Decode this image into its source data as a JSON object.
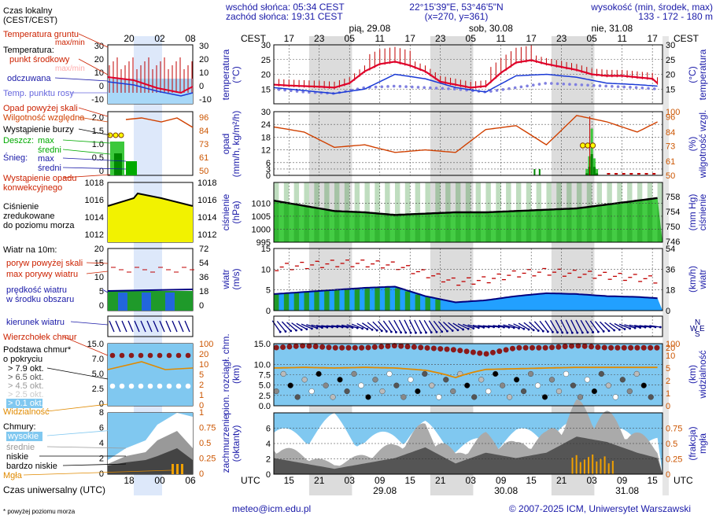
{
  "header": {
    "sunrise": "wschód słońca: 05:34 CEST",
    "sunset": "zachód słońca: 19:31 CEST",
    "coords": "22°15'39\"E, 53°46'5\"N",
    "grid": "(x=270,  y=361)",
    "height_title": "wysokość (min, środek, max)",
    "height_values": "133 - 172 - 180 m"
  },
  "colors": {
    "blue_text": "#1a1aa8",
    "red_text": "#cc2200",
    "orange_text": "#cc6a00",
    "green_text": "#00aa00",
    "dark_blue": "#000080"
  },
  "legend": {
    "local_time": "Czas lokalny\n(CEST/CEST)",
    "soil_temp": "Temperatura gruntu",
    "max_min": "max/min",
    "temperature": "Temperatura:",
    "mid_point": "punkt środkowy",
    "max_min2": "max/min",
    "felt": "odczuwana",
    "dew": "Temp. punktu rosy",
    "precip_above": "Opad powyżej skali",
    "humidity": "Wilgotność względna",
    "storm": "Wystąpienie burzy",
    "rain": "Deszcz:",
    "rain_max": "max",
    "rain_mean": "średni",
    "snow": "Śnieg:",
    "snow_max": "max",
    "snow_mean": "średni",
    "conv": "Wystąpienie opadu\nkonwekcyjnego",
    "pressure": "Ciśnienie\nzredukowane\ndo poziomu morza",
    "wind10": "Wiatr na 10m:",
    "gust_above": "poryw powyżej skali",
    "gust_max": "max porywy wiatru",
    "wind_mean": "prędkość wiatru\nw środku obszaru",
    "wind_dir": "kierunek wiatru",
    "cloud_top": "Wierzchołek chmur",
    "cloud_base": "Podstawa chmur*\no pokryciu",
    "okt79": "> 7.9 okt.",
    "okt65": "> 6.5 okt.",
    "okt45": "> 4.5 okt.",
    "okt25": "> 2.5 okt.",
    "okt01": "> 0.1 okt.",
    "visibility": "Widzialność",
    "clouds": "Chmury:",
    "high": "wysokie",
    "mid": "średnie",
    "low": "niskie",
    "very_low": "bardzo niskie",
    "fog": "Mgła",
    "utc_time": "Czas uniwersalny (UTC)",
    "footnote": "* powyżej poziomu morza",
    "mini_top_ticks": [
      "20",
      "02",
      "08"
    ],
    "mini_bottom_ticks": [
      "18",
      "00",
      "06"
    ]
  },
  "axes": {
    "temp_left": "temperatura\n(°C)",
    "temp_right": "(°C)\ntemperatura",
    "precip_left": "opad\n(mm/h, kg/m²/h)",
    "precip_right": "(%)\nwilgotność wzgl.",
    "press_left": "ciśnienie\n(hPa)",
    "press_right": "(mm Hg)\nciśnienie",
    "wind_left": "wiatr\n(m/s)",
    "wind_right": "(km/h)\nwiatr",
    "cloud_left": "pion. rozciągł. chm.\n(km)",
    "cloud_right": "(km)\nwidzialność",
    "cover_left": "zachmurzenie\n(oktanty)",
    "cover_right": "(frakcja)\nmgła"
  },
  "time": {
    "cest_label": "CEST",
    "utc_label": "UTC",
    "day_labels": [
      "pią, 29.08",
      "sob, 30.08",
      "nie, 31.08"
    ],
    "top_ticks": [
      "17",
      "23",
      "05",
      "11",
      "17",
      "23",
      "05",
      "11",
      "17",
      "23",
      "05",
      "11",
      "17"
    ],
    "bottom_ticks": [
      "15",
      "21",
      "03",
      "09",
      "15",
      "21",
      "03",
      "09",
      "15",
      "21",
      "03",
      "09",
      "15"
    ],
    "bottom_dates": [
      "29.08",
      "30.08",
      "31.08"
    ]
  },
  "footer": {
    "email": "meteo@icm.edu.pl",
    "copyright": "© 2007-2025 ICM, Uniwersytet Warszawski"
  },
  "chart_data": [
    {
      "type": "line",
      "title": "temperatura",
      "ylabel": "temperatura (°C)",
      "ylim": [
        10,
        30
      ],
      "yticks": [
        15,
        20,
        25,
        30
      ],
      "x_hours_utc": [
        15,
        21,
        27,
        33,
        39,
        45,
        51,
        57,
        63,
        69,
        75,
        81,
        87
      ],
      "series": [
        {
          "name": "punkt środkowy",
          "x": [
            12,
            15,
            18,
            21,
            24,
            27,
            30,
            33,
            36,
            39,
            42,
            45,
            48,
            51,
            54,
            57,
            60,
            63,
            66,
            69,
            72,
            75,
            78,
            81,
            84,
            87,
            88
          ],
          "values": [
            16.5,
            16.2,
            16.0,
            15.8,
            15.5,
            17.0,
            21.0,
            23.5,
            24.3,
            23.0,
            21.0,
            17.5,
            16.5,
            15.5,
            16.0,
            20.5,
            24.0,
            24.8,
            23.5,
            22.5,
            21.5,
            20.0,
            19.5,
            19.5,
            19.0,
            18.5,
            17.0
          ]
        },
        {
          "name": "odczuwana",
          "x": [
            12,
            18,
            24,
            30,
            36,
            42,
            48,
            54,
            60,
            66,
            72,
            78,
            84,
            88
          ],
          "values": [
            15.5,
            14.5,
            13.5,
            15.0,
            20.0,
            18.5,
            15.5,
            14.0,
            19.5,
            20.0,
            19.0,
            17.0,
            16.5,
            16.0
          ]
        },
        {
          "name": "Temp. punktu rosy",
          "x": [
            12,
            18,
            24,
            30,
            36,
            42,
            48,
            54,
            60,
            66,
            72,
            78,
            84,
            88
          ],
          "values": [
            15.0,
            14.0,
            13.5,
            15.5,
            16.0,
            15.5,
            15.0,
            14.0,
            15.5,
            17.0,
            16.5,
            16.0,
            15.5,
            15.0
          ]
        }
      ]
    },
    {
      "type": "bar",
      "title": "opad",
      "ylabel": "opad (mm/h, kg/m²/h)",
      "ylim": [
        0,
        30
      ],
      "yticks": [
        0,
        3,
        6,
        12,
        18,
        24,
        30
      ],
      "y2label": "wilgotność wzgl. (%)",
      "y2lim": [
        50,
        100
      ],
      "y2ticks": [
        50,
        61,
        73,
        84,
        96,
        100
      ],
      "series": [
        {
          "name": "Deszcz max",
          "x": [
            74,
            74.5,
            75,
            75.5,
            76
          ],
          "values": [
            3,
            9,
            22,
            8,
            3
          ]
        },
        {
          "name": "Deszcz średni",
          "x": [
            74,
            74.5,
            75,
            75.5,
            76
          ],
          "values": [
            1,
            4,
            10,
            4,
            1
          ]
        },
        {
          "name": "Wilgotność względna",
          "x": [
            12,
            18,
            24,
            30,
            36,
            42,
            48,
            54,
            60,
            66,
            72,
            78,
            84,
            88
          ],
          "values": [
            88,
            84,
            72,
            74,
            68,
            70,
            68,
            86,
            89,
            74,
            97,
            92,
            84,
            92
          ]
        }
      ]
    },
    {
      "type": "area",
      "title": "ciśnienie",
      "ylabel": "ciśnienie (hPa)",
      "ylim": [
        995,
        1018
      ],
      "yticks": [
        995,
        1000,
        1005,
        1010
      ],
      "y2label": "ciśnienie (mm Hg)",
      "y2ticks": [
        746,
        750,
        754,
        758
      ],
      "series": [
        {
          "name": "Ciśnienie",
          "x": [
            12,
            18,
            24,
            30,
            36,
            42,
            48,
            54,
            60,
            66,
            72,
            78,
            84,
            88
          ],
          "values": [
            1011.0,
            1009.0,
            1007.0,
            1006.5,
            1005.5,
            1006.0,
            1006.5,
            1006.5,
            1007.0,
            1007.5,
            1008.0,
            1009.5,
            1011.0,
            1012.0
          ]
        }
      ]
    },
    {
      "type": "line",
      "title": "wiatr",
      "ylabel": "wiatr (m/s)",
      "ylim": [
        0,
        15
      ],
      "yticks": [
        0,
        5,
        10,
        15
      ],
      "y2label": "wiatr (km/h)",
      "y2ticks": [
        18,
        36,
        54
      ],
      "series": [
        {
          "name": "prędkość wiatru",
          "x": [
            12,
            18,
            24,
            30,
            36,
            42,
            48,
            54,
            60,
            66,
            72,
            78,
            84,
            88
          ],
          "values": [
            4.0,
            4.5,
            5.0,
            5.5,
            5.8,
            3.5,
            2.0,
            2.5,
            3.5,
            4.2,
            4.0,
            3.5,
            3.3,
            3.0
          ]
        },
        {
          "name": "max porywy wiatru",
          "x": [
            12,
            18,
            24,
            30,
            36,
            42,
            48,
            54,
            60,
            66,
            72,
            78,
            84,
            88
          ],
          "values": [
            10.0,
            10.5,
            11.0,
            11.0,
            10.5,
            8.5,
            6.5,
            7.0,
            8.5,
            9.0,
            8.5,
            8.0,
            7.5,
            7.0
          ]
        }
      ]
    },
    {
      "type": "scatter",
      "title": "pion. rozciągł. chm.",
      "ylabel": "pion. rozciągł. chm. (km)",
      "ylim": [
        0,
        15
      ],
      "yticks": [
        0,
        2.5,
        5,
        7.5,
        10,
        15
      ],
      "y2label": "widzialność (km)",
      "y2ticks": [
        0,
        1,
        2,
        5,
        10,
        20,
        100
      ],
      "series": [
        {
          "name": "Wierzchołek chmur",
          "x": [
            12,
            18,
            24,
            30,
            36,
            42,
            48,
            54,
            60,
            66,
            72,
            78,
            84,
            88
          ],
          "values": [
            14,
            14.5,
            14,
            14,
            14.5,
            14,
            13.5,
            12.5,
            14,
            14,
            14.5,
            14,
            14,
            14
          ]
        },
        {
          "name": "Widzialność",
          "x": [
            12,
            18,
            24,
            30,
            36,
            42,
            48,
            54,
            60,
            66,
            72,
            78,
            84,
            88
          ],
          "values": [
            19,
            20,
            19,
            20,
            19,
            16,
            9,
            17,
            18,
            19,
            20,
            20,
            20,
            20
          ]
        }
      ]
    },
    {
      "type": "area",
      "title": "zachmurzenie",
      "ylabel": "zachmurzenie (oktanty)",
      "ylim": [
        0,
        8
      ],
      "yticks": [
        0,
        2,
        4,
        6
      ],
      "y2label": "mgła (frakcja)",
      "y2ticks": [
        0,
        0.25,
        0.5,
        0.75
      ],
      "series": [
        {
          "name": "niskie",
          "x": [
            12,
            18,
            24,
            30,
            36,
            42,
            48,
            54,
            60,
            66,
            72,
            78,
            84,
            88
          ],
          "values": [
            3,
            2,
            1,
            2,
            3,
            5,
            2,
            4,
            3,
            4,
            7,
            6,
            4,
            3
          ]
        },
        {
          "name": "wysokie",
          "x": [
            12,
            18,
            24,
            30,
            36,
            42,
            48,
            54,
            60,
            66,
            72,
            78,
            84,
            88
          ],
          "values": [
            6,
            6,
            8,
            5,
            6,
            7,
            4,
            5,
            6,
            6,
            7,
            6,
            6,
            5
          ]
        }
      ]
    }
  ]
}
